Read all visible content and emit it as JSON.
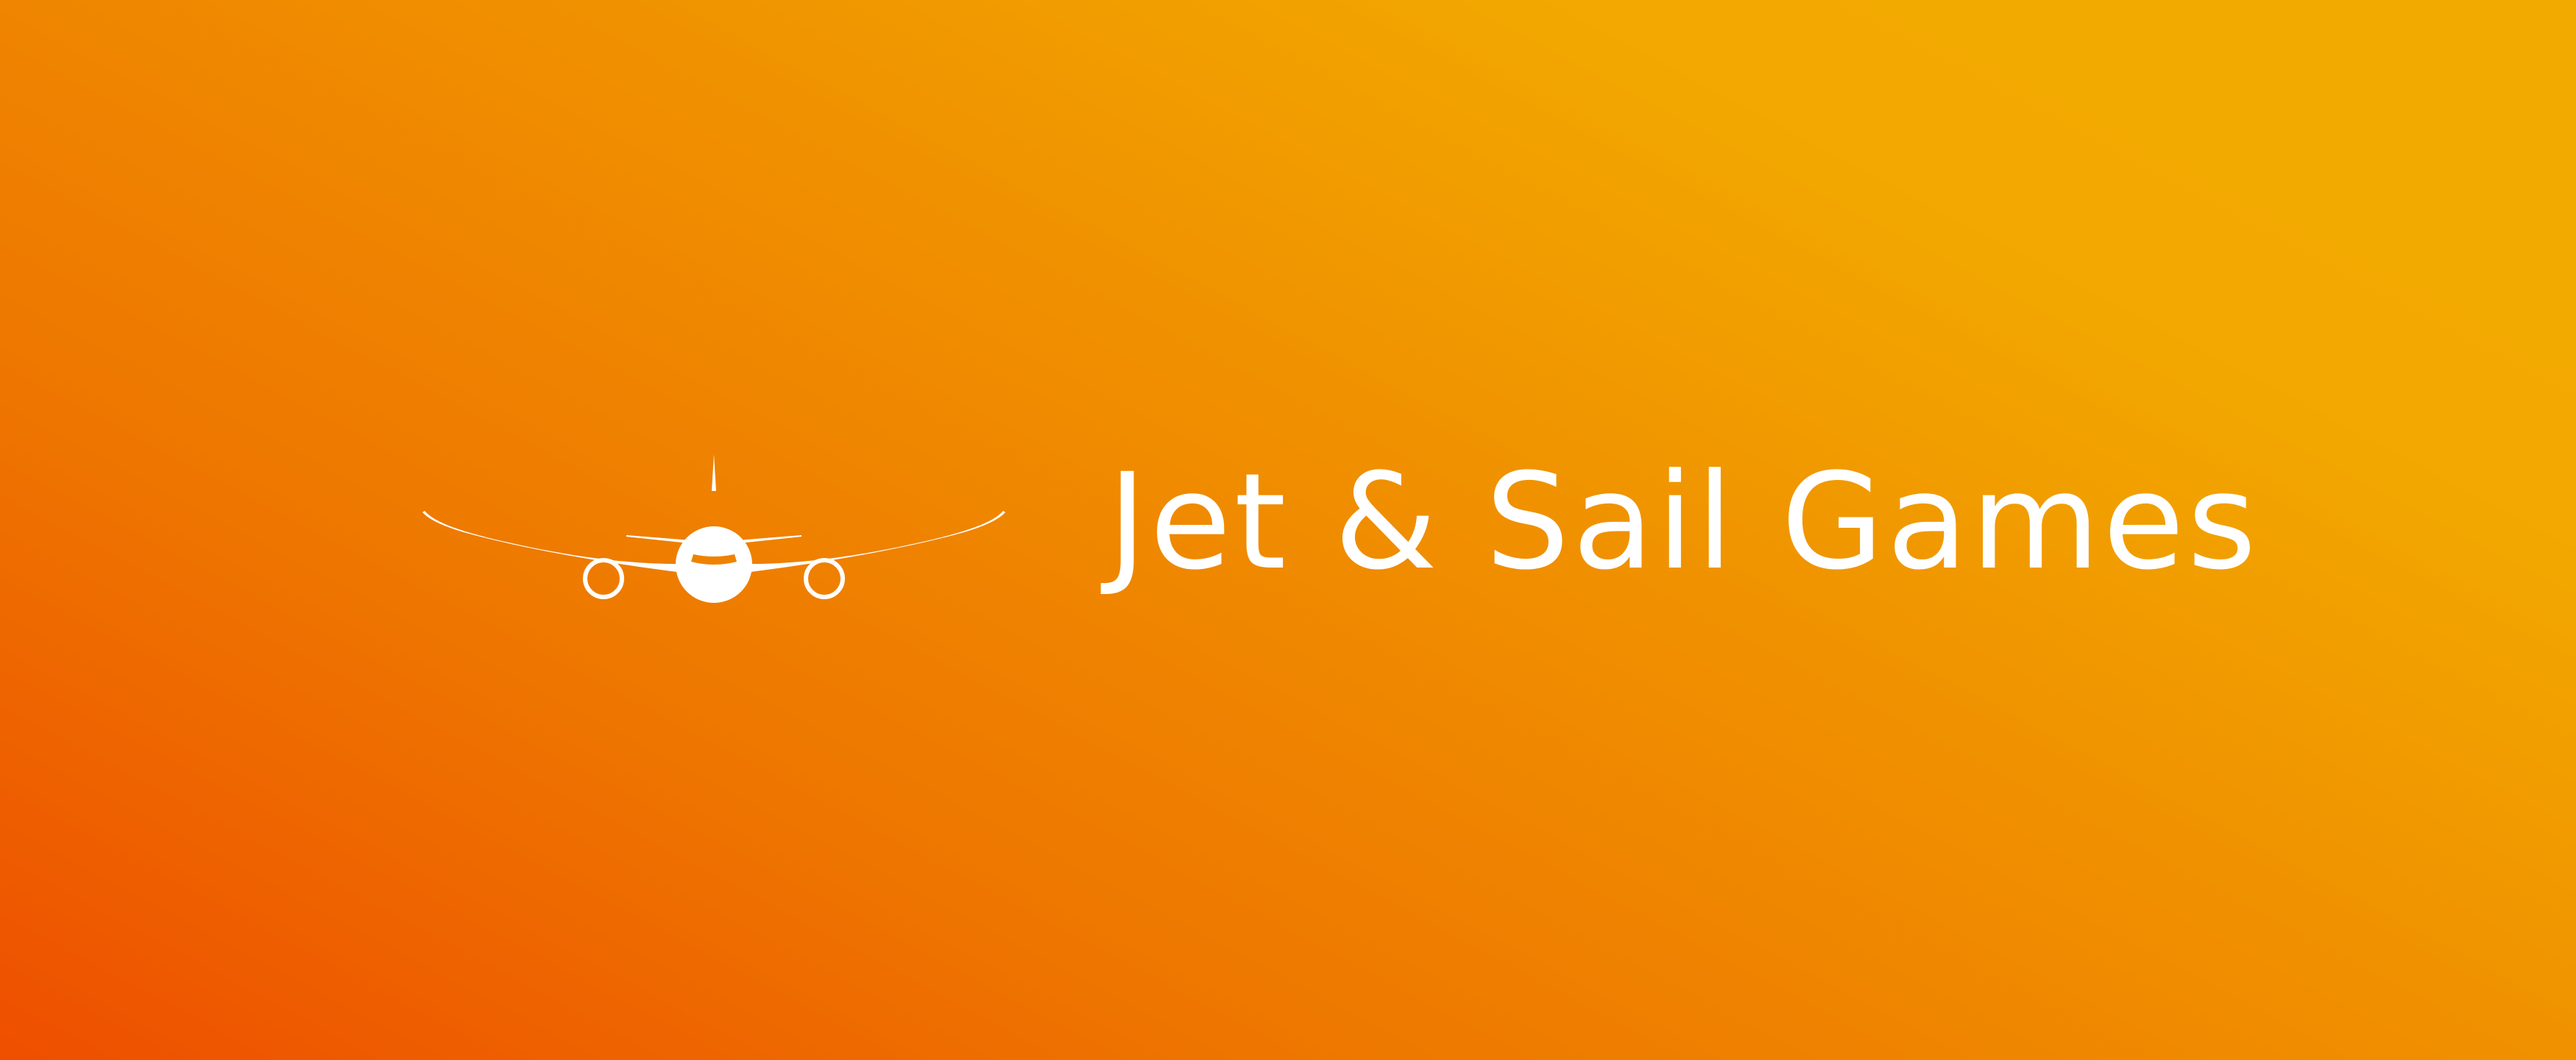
{
  "brand": {
    "name": "Jet & Sail Games",
    "logo_icon": "airplane-front-icon"
  },
  "colors": {
    "gradient_start": "#ee4f00",
    "gradient_end": "#f2aa00",
    "foreground": "#ffffff"
  }
}
